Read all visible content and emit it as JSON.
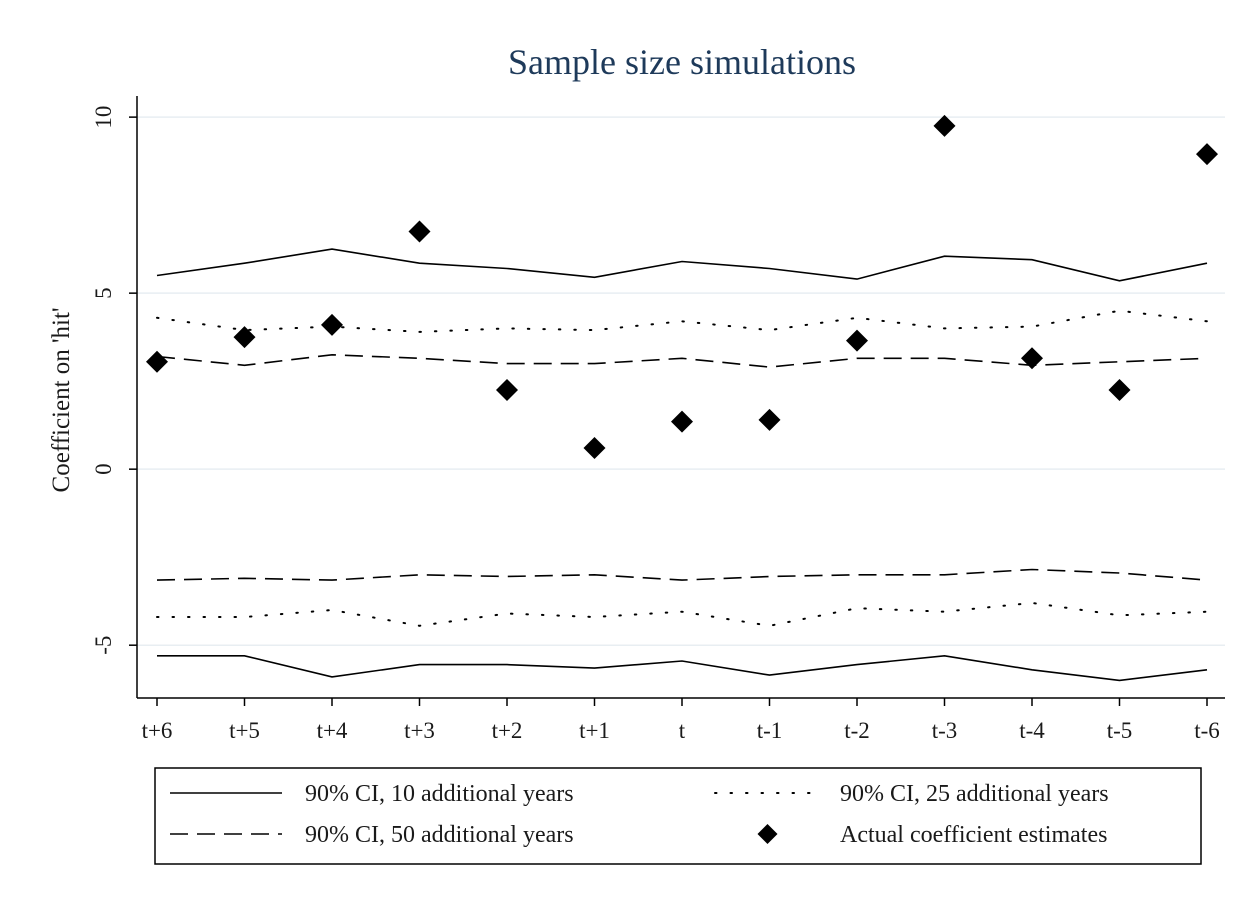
{
  "chart_data": {
    "type": "line",
    "title": "Sample size simulations",
    "xlabel": "",
    "ylabel": "Coefficient on 'hit'",
    "categories": [
      "t+6",
      "t+5",
      "t+4",
      "t+3",
      "t+2",
      "t+1",
      "t",
      "t-1",
      "t-2",
      "t-3",
      "t-4",
      "t-5",
      "t-6"
    ],
    "yticks": [
      10,
      5,
      0,
      -5
    ],
    "ytick_labels": [
      "10",
      "5",
      "0",
      "-5"
    ],
    "ylim": [
      -6.5,
      10.6
    ],
    "grid": "horizontal",
    "legend_position": "bottom",
    "series": [
      {
        "name": "90% CI, 10 additional years",
        "style": "solid",
        "color": "#000000",
        "upper": [
          5.5,
          5.85,
          6.25,
          5.85,
          5.7,
          5.45,
          5.9,
          5.7,
          5.4,
          6.05,
          5.95,
          5.35,
          5.85
        ],
        "lower": [
          -5.3,
          -5.3,
          -5.9,
          -5.55,
          -5.55,
          -5.65,
          -5.45,
          -5.85,
          -5.55,
          -5.3,
          -5.7,
          -6.0,
          -5.7
        ]
      },
      {
        "name": "90% CI, 25 additional years",
        "style": "dotted",
        "color": "#000000",
        "upper": [
          4.3,
          3.95,
          4.05,
          3.9,
          4.0,
          3.95,
          4.2,
          3.95,
          4.3,
          4.0,
          4.05,
          4.5,
          4.2
        ],
        "lower": [
          -4.2,
          -4.2,
          -4.0,
          -4.45,
          -4.1,
          -4.2,
          -4.05,
          -4.45,
          -3.95,
          -4.05,
          -3.8,
          -4.15,
          -4.05
        ]
      },
      {
        "name": "90% CI, 50 additional years",
        "style": "dashed",
        "color": "#000000",
        "upper": [
          3.2,
          2.95,
          3.25,
          3.15,
          3.0,
          3.0,
          3.15,
          2.9,
          3.15,
          3.15,
          2.95,
          3.05,
          3.15
        ],
        "lower": [
          -3.15,
          -3.1,
          -3.15,
          -3.0,
          -3.05,
          -3.0,
          -3.15,
          -3.05,
          -3.0,
          -3.0,
          -2.85,
          -2.95,
          -3.15
        ]
      },
      {
        "name": "Actual coefficient estimates",
        "style": "diamond-markers",
        "color": "#000000",
        "values": [
          3.05,
          3.75,
          4.1,
          6.75,
          2.25,
          0.6,
          1.35,
          1.4,
          3.65,
          9.75,
          3.15,
          2.25,
          8.95
        ]
      }
    ],
    "legend": {
      "entries": [
        "90% CI, 10 additional years",
        "90% CI, 25 additional years",
        "90% CI, 50 additional years",
        "Actual coefficient estimates"
      ]
    }
  }
}
